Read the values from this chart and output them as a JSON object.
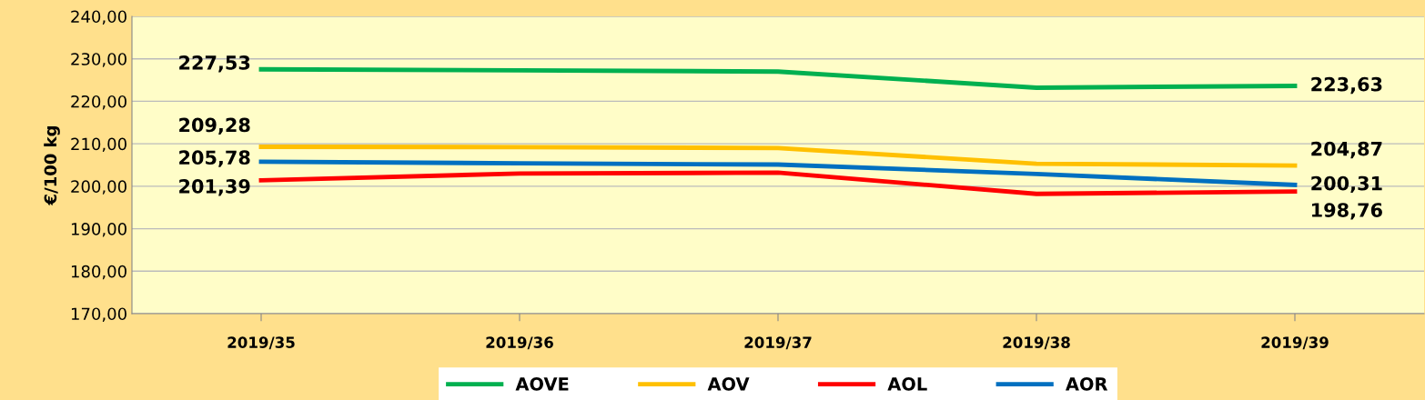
{
  "chart_data": {
    "type": "line",
    "ylabel": "€/100 kg",
    "categories": [
      "2019/35",
      "2019/36",
      "2019/37",
      "2019/38",
      "2019/39"
    ],
    "series": [
      {
        "name": "AOVE",
        "color": "#00b050",
        "values": [
          227.53,
          227.3,
          227.0,
          223.2,
          223.63
        ],
        "value_labels": [
          "227,53",
          null,
          null,
          null,
          "223,63"
        ]
      },
      {
        "name": "AOV",
        "color": "#ffc000",
        "values": [
          209.28,
          209.2,
          209.0,
          205.3,
          204.87
        ],
        "value_labels": [
          "209,28",
          null,
          null,
          null,
          "204,87"
        ]
      },
      {
        "name": "AOL",
        "color": "#ff0000",
        "values": [
          201.39,
          203.0,
          203.2,
          198.2,
          198.76
        ],
        "value_labels": [
          "201,39",
          null,
          null,
          null,
          "198,76"
        ]
      },
      {
        "name": "AOR",
        "color": "#0070c0",
        "values": [
          205.78,
          205.4,
          205.1,
          202.9,
          200.31
        ],
        "value_labels": [
          "205,78",
          null,
          null,
          null,
          "200,31"
        ]
      }
    ],
    "ylim": [
      170,
      240
    ],
    "yticks": [
      {
        "value": 170,
        "label": "170,00"
      },
      {
        "value": 180,
        "label": "180,00"
      },
      {
        "value": 190,
        "label": "190,00"
      },
      {
        "value": 200,
        "label": "200,00"
      },
      {
        "value": 210,
        "label": "210,00"
      },
      {
        "value": 220,
        "label": "220,00"
      },
      {
        "value": 230,
        "label": "230,00"
      },
      {
        "value": 240,
        "label": "240,00"
      }
    ],
    "grid": "y",
    "legend": "bottom",
    "marker": "none",
    "line_style": "solid"
  }
}
